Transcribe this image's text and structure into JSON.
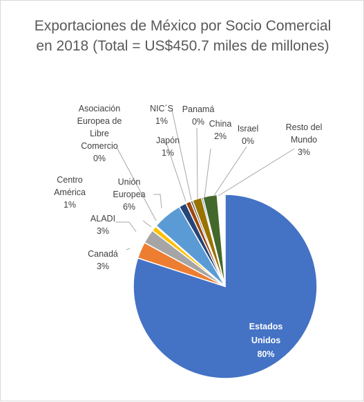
{
  "chart_data": {
    "type": "pie",
    "title": "Exportaciones de México por Socio Comercial en 2018 (Total = US$450.7 miles de millones)",
    "unit": "%",
    "slices": [
      {
        "name": "Estados Unidos",
        "label_lines": [
          "Estados",
          "Unidos"
        ],
        "value": 80,
        "value_label": "80%",
        "color": "#4472c4"
      },
      {
        "name": "Canadá",
        "label_lines": [
          "Canadá"
        ],
        "value": 3,
        "value_label": "3%",
        "color": "#ed7d31"
      },
      {
        "name": "ALADI",
        "label_lines": [
          "ALADI"
        ],
        "value": 3,
        "value_label": "3%",
        "color": "#a5a5a5"
      },
      {
        "name": "Centro América",
        "label_lines": [
          "Centro",
          "América"
        ],
        "value": 1,
        "value_label": "1%",
        "color": "#ffc000"
      },
      {
        "name": "Asociación Europea de Libre Comercio",
        "label_lines": [
          "Asociación",
          "Europea de",
          "Libre",
          "Comercio"
        ],
        "value": 0,
        "value_label": "0%",
        "color": "#5b9bd5"
      },
      {
        "name": "Unión Europea",
        "label_lines": [
          "Unión",
          "Europea"
        ],
        "value": 6,
        "value_label": "6%",
        "color": "#5b9bd5"
      },
      {
        "name": "Japón",
        "label_lines": [
          "Japón"
        ],
        "value": 1,
        "value_label": "1%",
        "color": "#264478"
      },
      {
        "name": "NIC´S",
        "label_lines": [
          "NIC´S"
        ],
        "value": 1,
        "value_label": "1%",
        "color": "#9e480e"
      },
      {
        "name": "Panamá",
        "label_lines": [
          "Panamá"
        ],
        "value": 0,
        "value_label": "0%",
        "color": "#636363"
      },
      {
        "name": "China",
        "label_lines": [
          "China"
        ],
        "value": 2,
        "value_label": "2%",
        "color": "#997300"
      },
      {
        "name": "Israel",
        "label_lines": [
          "Israel"
        ],
        "value": 0,
        "value_label": "0%",
        "color": "#255e91"
      },
      {
        "name": "Resto del Mundo",
        "label_lines": [
          "Resto del",
          "Mundo"
        ],
        "value": 3,
        "value_label": "3%",
        "color": "#43682b"
      }
    ]
  }
}
